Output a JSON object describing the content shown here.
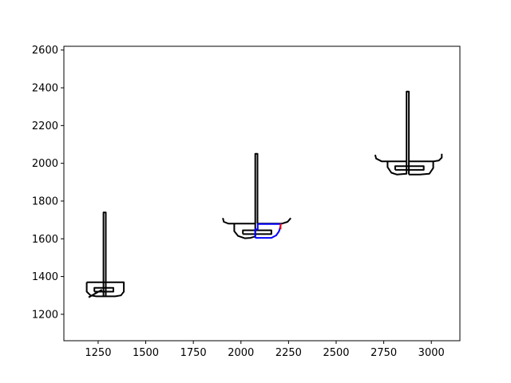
{
  "chart_data": {
    "type": "line",
    "title": "",
    "xlabel": "",
    "ylabel": "",
    "xlim": [
      1070,
      3150
    ],
    "ylim": [
      1060,
      2620
    ],
    "grid": false,
    "xticks": [
      1250,
      1500,
      1750,
      2000,
      2250,
      2500,
      2750,
      3000
    ],
    "yticks": [
      1200,
      1400,
      1600,
      1800,
      2000,
      2200,
      2400,
      2600
    ],
    "series": [
      {
        "color": "#000000",
        "points": [
          [
            1270,
            1330
          ],
          [
            1200,
            1290
          ]
        ]
      },
      {
        "color": "#000000",
        "points": [
          [
            1190,
            1370
          ],
          [
            1190,
            1320
          ],
          [
            1210,
            1300
          ],
          [
            1240,
            1295
          ],
          [
            1340,
            1295
          ],
          [
            1370,
            1300
          ],
          [
            1385,
            1320
          ],
          [
            1385,
            1370
          ],
          [
            1190,
            1370
          ]
        ]
      },
      {
        "color": "#000000",
        "points": [
          [
            1230,
            1320
          ],
          [
            1330,
            1320
          ],
          [
            1330,
            1340
          ],
          [
            1230,
            1340
          ],
          [
            1230,
            1320
          ]
        ]
      },
      {
        "color": "#000000",
        "points": [
          [
            1278,
            1295
          ],
          [
            1278,
            1740
          ],
          [
            1290,
            1740
          ],
          [
            1290,
            1295
          ]
        ]
      },
      {
        "color": "#000000",
        "points": [
          [
            1905,
            1710
          ],
          [
            1910,
            1690
          ],
          [
            1935,
            1680
          ],
          [
            2075,
            1680
          ],
          [
            2075,
            1612
          ],
          [
            2050,
            1605
          ],
          [
            2020,
            1603
          ],
          [
            1985,
            1615
          ],
          [
            1965,
            1640
          ],
          [
            1965,
            1680
          ]
        ]
      },
      {
        "color": "#000000",
        "points": [
          [
            2010,
            1625
          ],
          [
            2160,
            1625
          ],
          [
            2160,
            1645
          ],
          [
            2010,
            1645
          ],
          [
            2010,
            1625
          ]
        ]
      },
      {
        "color": "#000000",
        "points": [
          [
            2075,
            1680
          ],
          [
            2075,
            2050
          ],
          [
            2087,
            2050
          ],
          [
            2087,
            1680
          ]
        ]
      },
      {
        "color": "#000000",
        "points": [
          [
            2087,
            1680
          ],
          [
            2215,
            1680
          ],
          [
            2245,
            1690
          ],
          [
            2262,
            1710
          ]
        ]
      },
      {
        "color": "#0000ff",
        "points": [
          [
            2075,
            1605
          ],
          [
            2160,
            1605
          ],
          [
            2185,
            1618
          ],
          [
            2200,
            1640
          ],
          [
            2208,
            1668
          ],
          [
            2208,
            1678
          ],
          [
            2088,
            1678
          ],
          [
            2088,
            1650
          ],
          [
            2075,
            1650
          ],
          [
            2075,
            1605
          ]
        ]
      },
      {
        "color": "#ff0000",
        "points": [
          [
            2208,
            1650
          ],
          [
            2208,
            1680
          ]
        ]
      },
      {
        "color": "#000000",
        "points": [
          [
            2705,
            2045
          ],
          [
            2710,
            2025
          ],
          [
            2740,
            2010
          ],
          [
            2870,
            2010
          ],
          [
            2870,
            1945
          ],
          [
            2820,
            1940
          ],
          [
            2790,
            1950
          ],
          [
            2770,
            1980
          ],
          [
            2770,
            2010
          ]
        ]
      },
      {
        "color": "#000000",
        "points": [
          [
            2810,
            1965
          ],
          [
            2960,
            1965
          ],
          [
            2960,
            1985
          ],
          [
            2810,
            1985
          ],
          [
            2810,
            1965
          ]
        ]
      },
      {
        "color": "#000000",
        "points": [
          [
            2870,
            2010
          ],
          [
            2870,
            2380
          ],
          [
            2882,
            2380
          ],
          [
            2882,
            1940
          ]
        ]
      },
      {
        "color": "#000000",
        "points": [
          [
            2882,
            2010
          ],
          [
            3010,
            2010
          ],
          [
            3010,
            1975
          ],
          [
            2990,
            1945
          ],
          [
            2940,
            1940
          ],
          [
            2882,
            1940
          ]
        ]
      },
      {
        "color": "#000000",
        "points": [
          [
            3010,
            2010
          ],
          [
            3040,
            2015
          ],
          [
            3055,
            2030
          ],
          [
            3055,
            2050
          ]
        ]
      }
    ]
  }
}
